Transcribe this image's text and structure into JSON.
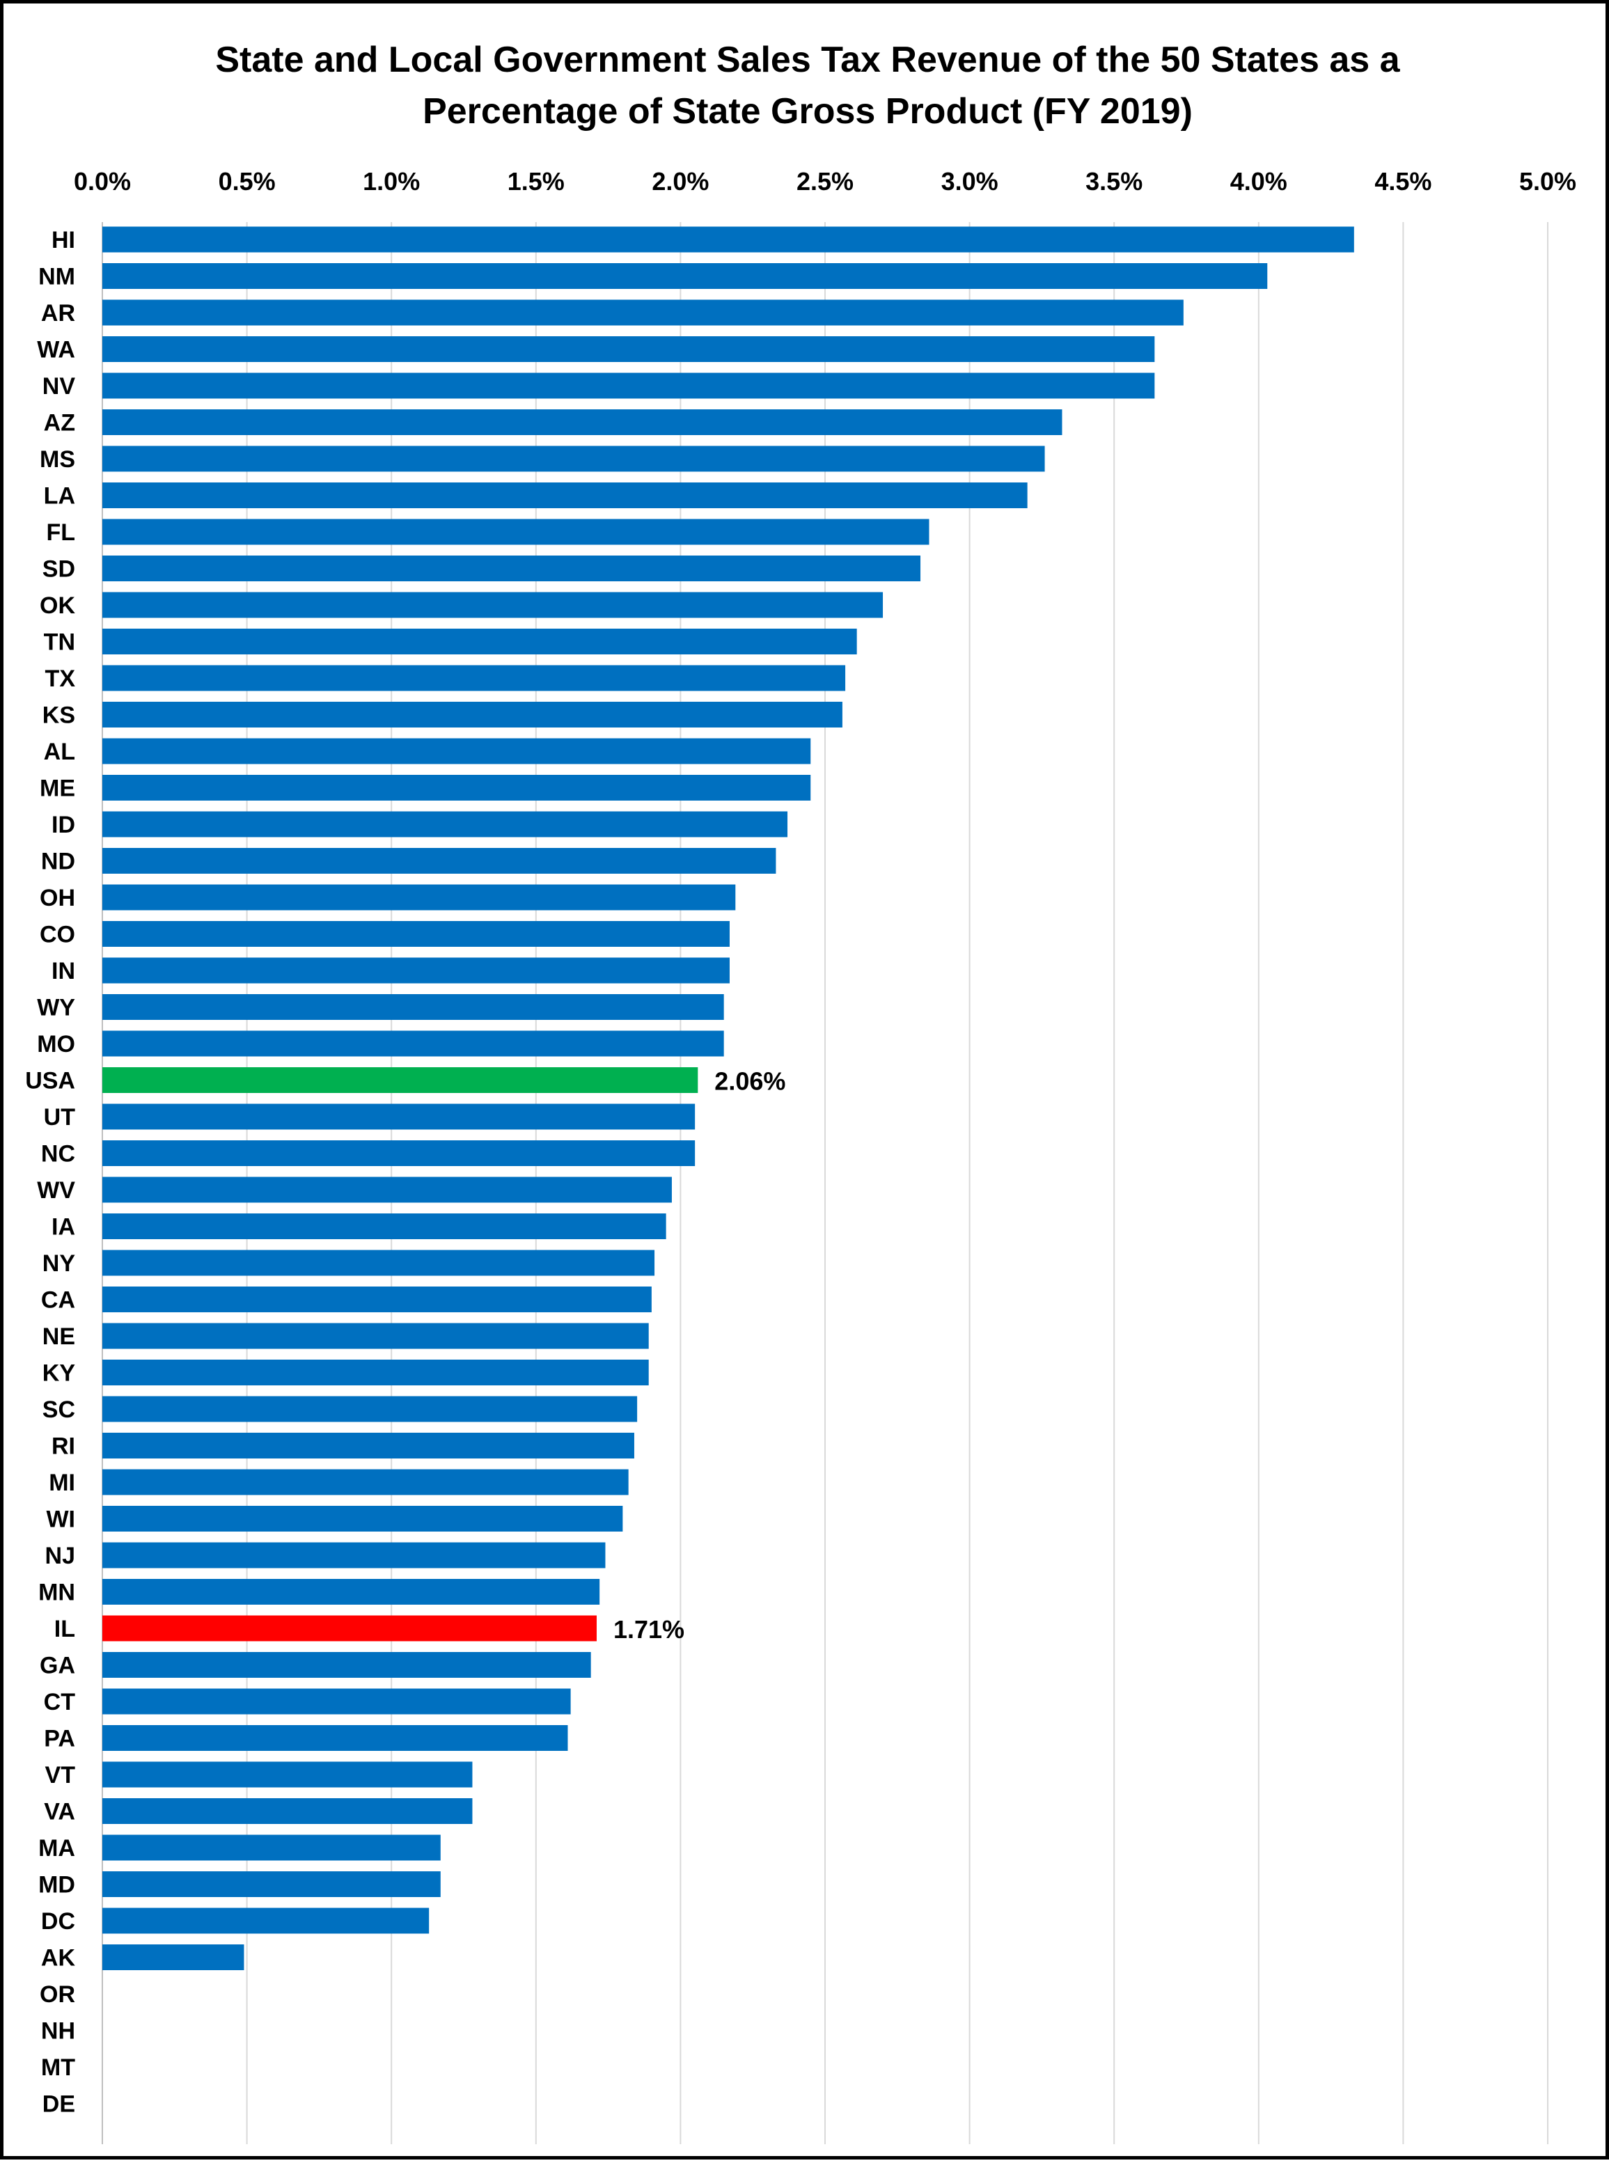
{
  "chart_data": {
    "type": "bar",
    "orientation": "horizontal",
    "title": [
      "State and Local Government Sales Tax Revenue of the 50 States as a",
      "Percentage of State Gross Product (FY 2019)"
    ],
    "xlabel": "",
    "ylabel": "",
    "xlim": [
      0,
      5
    ],
    "x_tick_labels": [
      "0.0%",
      "0.5%",
      "1.0%",
      "1.5%",
      "2.0%",
      "2.5%",
      "3.0%",
      "3.5%",
      "4.0%",
      "4.5%",
      "5.0%"
    ],
    "x_axis_position": "top",
    "grid": "vertical",
    "legend": "none",
    "default_color": "#0070C0",
    "categories": [
      "HI",
      "NM",
      "AR",
      "WA",
      "NV",
      "AZ",
      "MS",
      "LA",
      "FL",
      "SD",
      "OK",
      "TN",
      "TX",
      "KS",
      "AL",
      "ME",
      "ID",
      "ND",
      "OH",
      "CO",
      "IN",
      "WY",
      "MO",
      "USA",
      "UT",
      "NC",
      "WV",
      "IA",
      "NY",
      "CA",
      "NE",
      "KY",
      "SC",
      "RI",
      "MI",
      "WI",
      "NJ",
      "MN",
      "IL",
      "GA",
      "CT",
      "PA",
      "VT",
      "VA",
      "MA",
      "MD",
      "DC",
      "AK",
      "OR",
      "NH",
      "MT",
      "DE"
    ],
    "values": [
      4.33,
      4.03,
      3.74,
      3.64,
      3.64,
      3.32,
      3.26,
      3.2,
      2.86,
      2.83,
      2.7,
      2.61,
      2.57,
      2.56,
      2.45,
      2.45,
      2.37,
      2.33,
      2.19,
      2.17,
      2.17,
      2.15,
      2.15,
      2.06,
      2.05,
      2.05,
      1.97,
      1.95,
      1.91,
      1.9,
      1.89,
      1.89,
      1.85,
      1.84,
      1.82,
      1.8,
      1.74,
      1.72,
      1.71,
      1.69,
      1.62,
      1.61,
      1.28,
      1.28,
      1.17,
      1.17,
      1.13,
      0.49,
      0,
      0,
      0,
      0
    ],
    "highlights": [
      {
        "category": "USA",
        "color": "#00B050",
        "label": "2.06%"
      },
      {
        "category": "IL",
        "color": "#FF0000",
        "label": "1.71%"
      }
    ]
  }
}
